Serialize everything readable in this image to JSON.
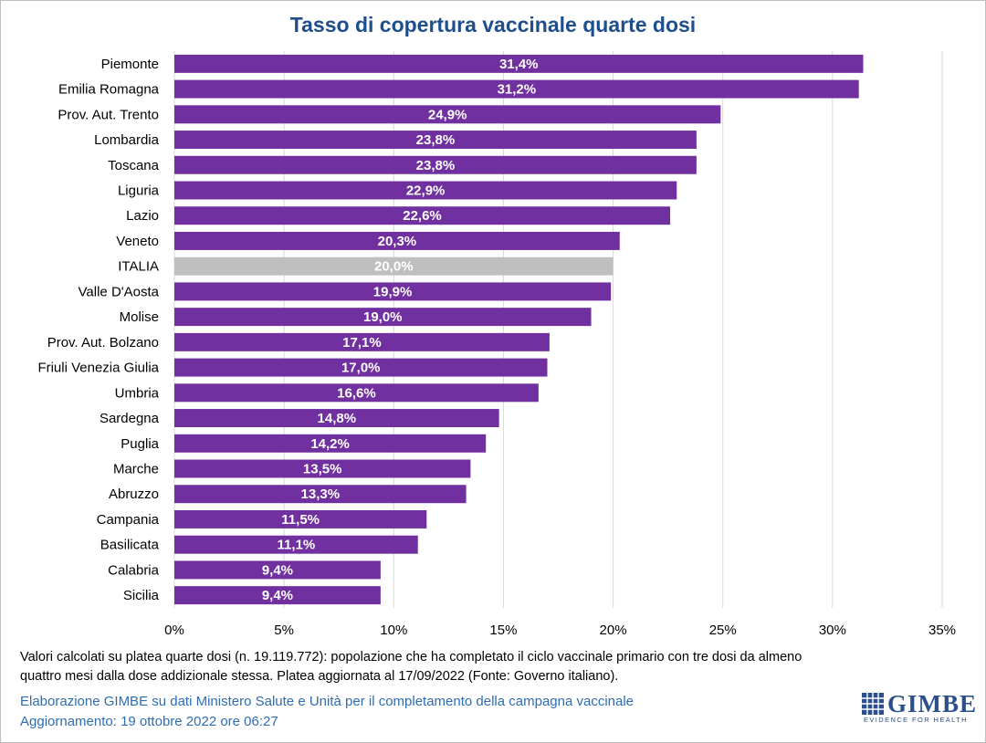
{
  "chart_data": {
    "type": "bar",
    "orientation": "horizontal",
    "title": "Tasso di copertura vaccinale quarte dosi",
    "categories": [
      "Piemonte",
      "Emilia Romagna",
      "Prov. Aut. Trento",
      "Lombardia",
      "Toscana",
      "Liguria",
      "Lazio",
      "Veneto",
      "ITALIA",
      "Valle D'Aosta",
      "Molise",
      "Prov. Aut. Bolzano",
      "Friuli Venezia Giulia",
      "Umbria",
      "Sardegna",
      "Puglia",
      "Marche",
      "Abruzzo",
      "Campania",
      "Basilicata",
      "Calabria",
      "Sicilia"
    ],
    "values": [
      31.4,
      31.2,
      24.9,
      23.8,
      23.8,
      22.9,
      22.6,
      20.3,
      20.0,
      19.9,
      19.0,
      17.1,
      17.0,
      16.6,
      14.8,
      14.2,
      13.5,
      13.3,
      11.5,
      11.1,
      9.4,
      9.4
    ],
    "value_labels": [
      "31,4%",
      "31,2%",
      "24,9%",
      "23,8%",
      "23,8%",
      "22,9%",
      "22,6%",
      "20,3%",
      "20,0%",
      "19,9%",
      "19,0%",
      "17,1%",
      "17,0%",
      "16,6%",
      "14,8%",
      "14,2%",
      "13,5%",
      "13,3%",
      "11,5%",
      "11,1%",
      "9,4%",
      "9,4%"
    ],
    "highlight_category": "ITALIA",
    "xlim": [
      0,
      35
    ],
    "xticks": [
      0,
      5,
      10,
      15,
      20,
      25,
      30,
      35
    ],
    "xtick_labels": [
      "0%",
      "5%",
      "10%",
      "15%",
      "20%",
      "25%",
      "30%",
      "35%"
    ],
    "grid": "vertical",
    "colors": {
      "bar": "#7030a0",
      "highlight": "#bfbfbf",
      "grid": "#d9d9d9",
      "title": "#1f4e8c"
    }
  },
  "footnote": {
    "line1": "Valori calcolati su platea quarte dosi (n. 19.119.772): popolazione che ha completato il ciclo vaccinale primario con tre dosi da almeno",
    "line2": "quattro mesi dalla dose addizionale stessa. Platea aggiornata al 17/09/2022 (Fonte: Governo italiano)."
  },
  "credits": {
    "line1": "Elaborazione GIMBE su dati Ministero Salute e Unità per il completamento della campagna vaccinale",
    "line2": "Aggiornamento: 19 ottobre 2022 ore 06:27"
  },
  "logo": {
    "word": "GIMBE",
    "tagline": "EVIDENCE FOR HEALTH",
    "icon": "gimbe-grid-icon"
  }
}
